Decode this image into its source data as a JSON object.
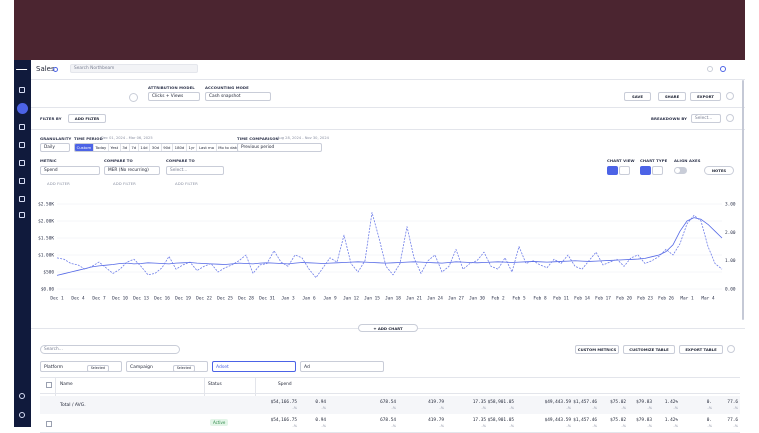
{
  "app": {
    "title": "Sales",
    "search_placeholder": "Search Northbeam"
  },
  "toolbar": {
    "attribution_label": "ATTRIBUTION MODEL",
    "attribution_value": "Clicks + Views",
    "accounting_label": "ACCOUNTING MODE",
    "accounting_value": "Cash snapshot",
    "buttons": [
      "SAVE",
      "SHARE",
      "EXPORT"
    ]
  },
  "filter_bar": {
    "filter_label": "FILTER BY",
    "add_filter": "ADD FILTER",
    "breakdown_label": "BREAKDOWN BY",
    "breakdown_value": "Select..."
  },
  "controls": {
    "granularity_label": "GRANULARITY",
    "granularity_value": "Daily",
    "time_period_label": "TIME PERIOD",
    "time_period_range": "Dec 01, 2024 - Mar 06, 2025",
    "presets": [
      "Custom",
      "Today",
      "Yest",
      "3d",
      "7d",
      "14d",
      "30d",
      "90d",
      "180d",
      "1yr",
      "Last mo",
      "Mo to date",
      "Year to date"
    ],
    "time_comparison_label": "TIME COMPARISON",
    "comparison_range": "Aug 28, 2024 - Nov 30, 2024",
    "comparison_value": "Previous period",
    "metric_label": "METRIC",
    "compare_to_label": "COMPARE TO",
    "compare_placeholder": "Select...",
    "add_filter": "ADD FILTER",
    "chart_view_label": "CHART VIEW",
    "chart_type_label": "CHART TYPE",
    "align_axes_label": "ALIGN AXES",
    "notes": "NOTES"
  },
  "chart_data": {
    "type": "line",
    "grid": true,
    "categories": [
      "Dec 1",
      null,
      null,
      "Dec 4",
      null,
      null,
      "Dec 7",
      null,
      null,
      "Dec 10",
      null,
      null,
      "Dec 13",
      null,
      null,
      "Dec 16",
      null,
      null,
      "Dec 19",
      null,
      null,
      "Dec 22",
      null,
      null,
      "Dec 25",
      null,
      null,
      "Dec 28",
      null,
      null,
      "Dec 31",
      null,
      null,
      "Jan 3",
      null,
      null,
      "Jan 6",
      null,
      null,
      "Jan 9",
      null,
      null,
      "Jan 12",
      null,
      null,
      "Jan 15",
      null,
      null,
      "Jan 18",
      null,
      null,
      "Jan 21",
      null,
      null,
      "Jan 24",
      null,
      null,
      "Jan 27",
      null,
      null,
      "Jan 30",
      null,
      null,
      "Feb 2",
      null,
      null,
      "Feb 5",
      null,
      null,
      "Feb 8",
      null,
      null,
      "Feb 11",
      null,
      null,
      "Feb 14",
      null,
      null,
      "Feb 17",
      null,
      null,
      "Feb 20",
      null,
      null,
      "Feb 23",
      null,
      null,
      "Feb 26",
      null,
      null,
      "Mar 1",
      null,
      null,
      "Mar 4",
      null,
      null
    ],
    "ylim": [
      0,
      2500
    ],
    "yticks": [
      {
        "value": 0,
        "label": "$0.00"
      },
      {
        "value": 500,
        "label": "$500"
      },
      {
        "value": 1000,
        "label": "$1.00K"
      },
      {
        "value": 1500,
        "label": "$1.50K"
      },
      {
        "value": 2000,
        "label": "$2.00K"
      },
      {
        "value": 2500,
        "label": "$2.50K"
      }
    ],
    "y2lim": [
      0,
      3
    ],
    "y2ticks": [
      {
        "value": 0,
        "label": "0.00"
      },
      {
        "value": 1,
        "label": "1.00"
      },
      {
        "value": 2,
        "label": "2.00"
      },
      {
        "value": 3,
        "label": "3.00"
      }
    ],
    "series": [
      {
        "name": "Spend",
        "color": "#5468e6",
        "dashed": false,
        "values": [
          400,
          450,
          500,
          550,
          600,
          650,
          680,
          700,
          720,
          750,
          760,
          740,
          750,
          770,
          760,
          750,
          740,
          760,
          770,
          780,
          760,
          750,
          740,
          730,
          720,
          740,
          760,
          750,
          740,
          760,
          770,
          760,
          750,
          740,
          760,
          780,
          770,
          760,
          750,
          760,
          770,
          780,
          790,
          800,
          790,
          780,
          770,
          760,
          770,
          780,
          790,
          800,
          790,
          780,
          770,
          760,
          780,
          800,
          790,
          780,
          770,
          780,
          790,
          800,
          790,
          780,
          790,
          800,
          810,
          800,
          790,
          800,
          810,
          820,
          830,
          820,
          810,
          820,
          830,
          840,
          850,
          860,
          870,
          880,
          900,
          950,
          1000,
          1100,
          1300,
          1700,
          2000,
          2100,
          2050,
          1900,
          1700,
          1500
        ]
      },
      {
        "name": "MER (No recurring)",
        "color": "#6d7ce8",
        "dashed": true,
        "axis": "y2",
        "values": [
          1.1,
          1.05,
          0.9,
          0.85,
          0.7,
          0.8,
          0.95,
          0.75,
          0.55,
          0.7,
          0.95,
          1.05,
          0.8,
          0.5,
          0.55,
          0.75,
          1.15,
          0.7,
          0.85,
          0.95,
          0.65,
          0.8,
          0.9,
          0.6,
          0.75,
          0.85,
          1.0,
          1.2,
          0.55,
          0.85,
          0.9,
          1.35,
          0.95,
          0.8,
          1.2,
          1.1,
          0.7,
          0.4,
          0.75,
          1.1,
          0.95,
          1.9,
          0.9,
          0.6,
          1.0,
          2.7,
          1.8,
          0.8,
          0.5,
          0.9,
          2.2,
          1.1,
          0.55,
          1.0,
          1.2,
          0.6,
          0.8,
          1.4,
          0.7,
          0.9,
          1.0,
          1.3,
          0.8,
          0.7,
          1.1,
          0.6,
          1.5,
          0.9,
          1.0,
          0.85,
          0.75,
          1.05,
          0.9,
          1.2,
          0.8,
          0.7,
          1.0,
          1.3,
          0.85,
          0.95,
          1.05,
          0.8,
          1.1,
          1.2,
          0.9,
          1.0,
          1.15,
          1.4,
          1.2,
          1.6,
          2.3,
          2.6,
          2.4,
          1.5,
          0.9,
          0.7
        ]
      }
    ]
  },
  "add_chart": "+ ADD CHART",
  "table": {
    "search_placeholder": "Search...",
    "buttons": [
      "CUSTOM METRICS",
      "CUSTOMIZE TABLE",
      "EXPORT TABLE"
    ],
    "breakdowns": [
      {
        "name": "Platform",
        "tag": "Selected"
      },
      {
        "name": "Campaign",
        "tag": "Selected"
      },
      {
        "name": "Adset"
      },
      {
        "name": "Ad"
      }
    ],
    "columns": [
      "Name",
      "Status",
      "Spend"
    ],
    "change": "-%",
    "rows": [
      {
        "label": "Total / AVG.",
        "cells": [
          "$54,166.75",
          "0.94",
          "678.54",
          "419.79",
          "17.35",
          "$58,901.05",
          "$49,443.59",
          "$1,457.46",
          "$75.02",
          "$79.83",
          "1.42%",
          "0.",
          "77.6"
        ]
      },
      {
        "status": "Active",
        "cells": [
          "$54,166.75",
          "0.94",
          "678.54",
          "419.79",
          "17.35",
          "$58,901.05",
          "$49,443.59",
          "$1,457.46",
          "$75.02",
          "$79.83",
          "1.42%",
          "0.",
          "77.6"
        ]
      }
    ]
  }
}
